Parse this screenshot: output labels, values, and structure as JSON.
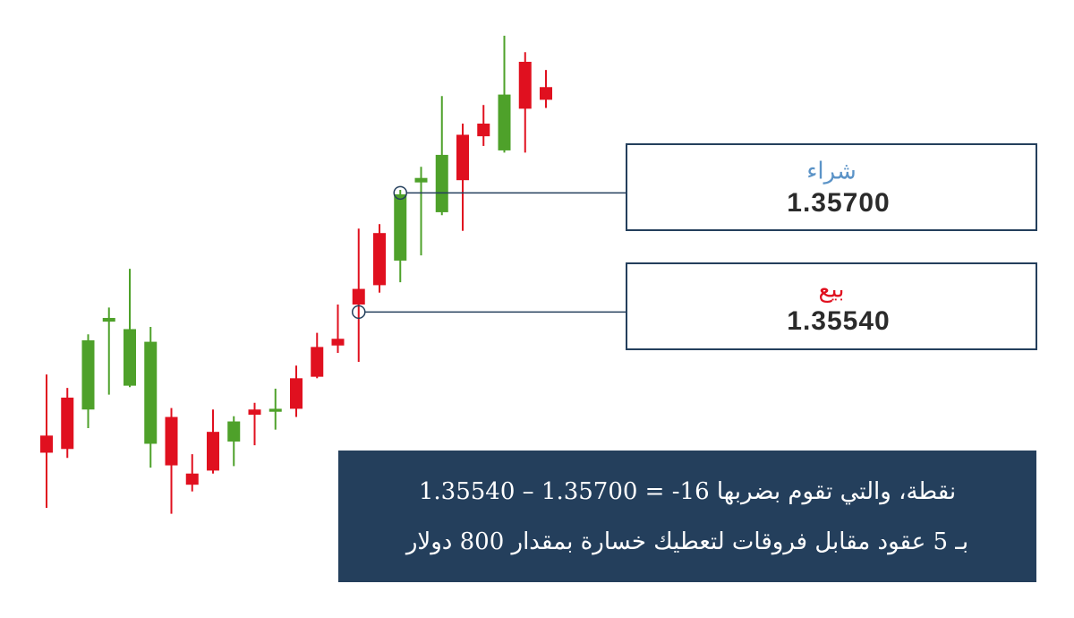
{
  "chart_data": {
    "type": "candlestick",
    "up_color": "#4ea12a",
    "down_color": "#e0101f",
    "ylim": [
      1.35129,
      1.35959
    ],
    "open": [
      1.35374,
      1.35425,
      1.35409,
      1.35527,
      1.35441,
      1.35363,
      1.35399,
      1.35323,
      1.35379,
      1.35366,
      1.35409,
      1.35406,
      1.35451,
      1.35493,
      1.35504,
      1.35571,
      1.35646,
      1.35609,
      1.35714,
      1.35674,
      1.35778,
      1.35793,
      1.35757,
      1.35876,
      1.35842
    ],
    "high": [
      1.35456,
      1.35438,
      1.3551,
      1.35546,
      1.35598,
      1.3552,
      1.35411,
      1.35349,
      1.35409,
      1.354,
      1.35418,
      1.35437,
      1.35468,
      1.35512,
      1.3555,
      1.35652,
      1.35658,
      1.35704,
      1.35735,
      1.3583,
      1.35793,
      1.35818,
      1.35911,
      1.35889,
      1.35865
    ],
    "low": [
      1.35277,
      1.35344,
      1.35384,
      1.35429,
      1.35439,
      1.35331,
      1.35269,
      1.35299,
      1.35323,
      1.35333,
      1.35361,
      1.35382,
      1.35399,
      1.35451,
      1.35485,
      1.35473,
      1.35566,
      1.3558,
      1.35616,
      1.3567,
      1.35649,
      1.35763,
      1.35754,
      1.35754,
      1.35814
    ],
    "close": [
      1.35351,
      1.35356,
      1.35502,
      1.35532,
      1.35517,
      1.355,
      1.35334,
      1.35308,
      1.35327,
      1.35393,
      1.35402,
      1.3541,
      1.3541,
      1.35453,
      1.35495,
      1.3555,
      1.35576,
      1.35698,
      1.3572,
      1.35751,
      1.35717,
      1.35776,
      1.35832,
      1.35813,
      1.35825
    ],
    "buy": {
      "label": "شراء",
      "color": "#5b93c7",
      "price": {
        "value": 1.357,
        "label": "1.35700"
      }
    },
    "sell": {
      "label": "بيع",
      "color": "#e0101f",
      "price": {
        "value": 1.3554,
        "label": "1.35540"
      }
    },
    "note": [
      "1.35540 – 1.35700 = -16 نقطة، والتي تقوم بضربها",
      "بـ 5 عقود مقابل فروقات لتعطيك خسارة بمقدار 800 دولار"
    ],
    "note_color": "#243f5c"
  }
}
